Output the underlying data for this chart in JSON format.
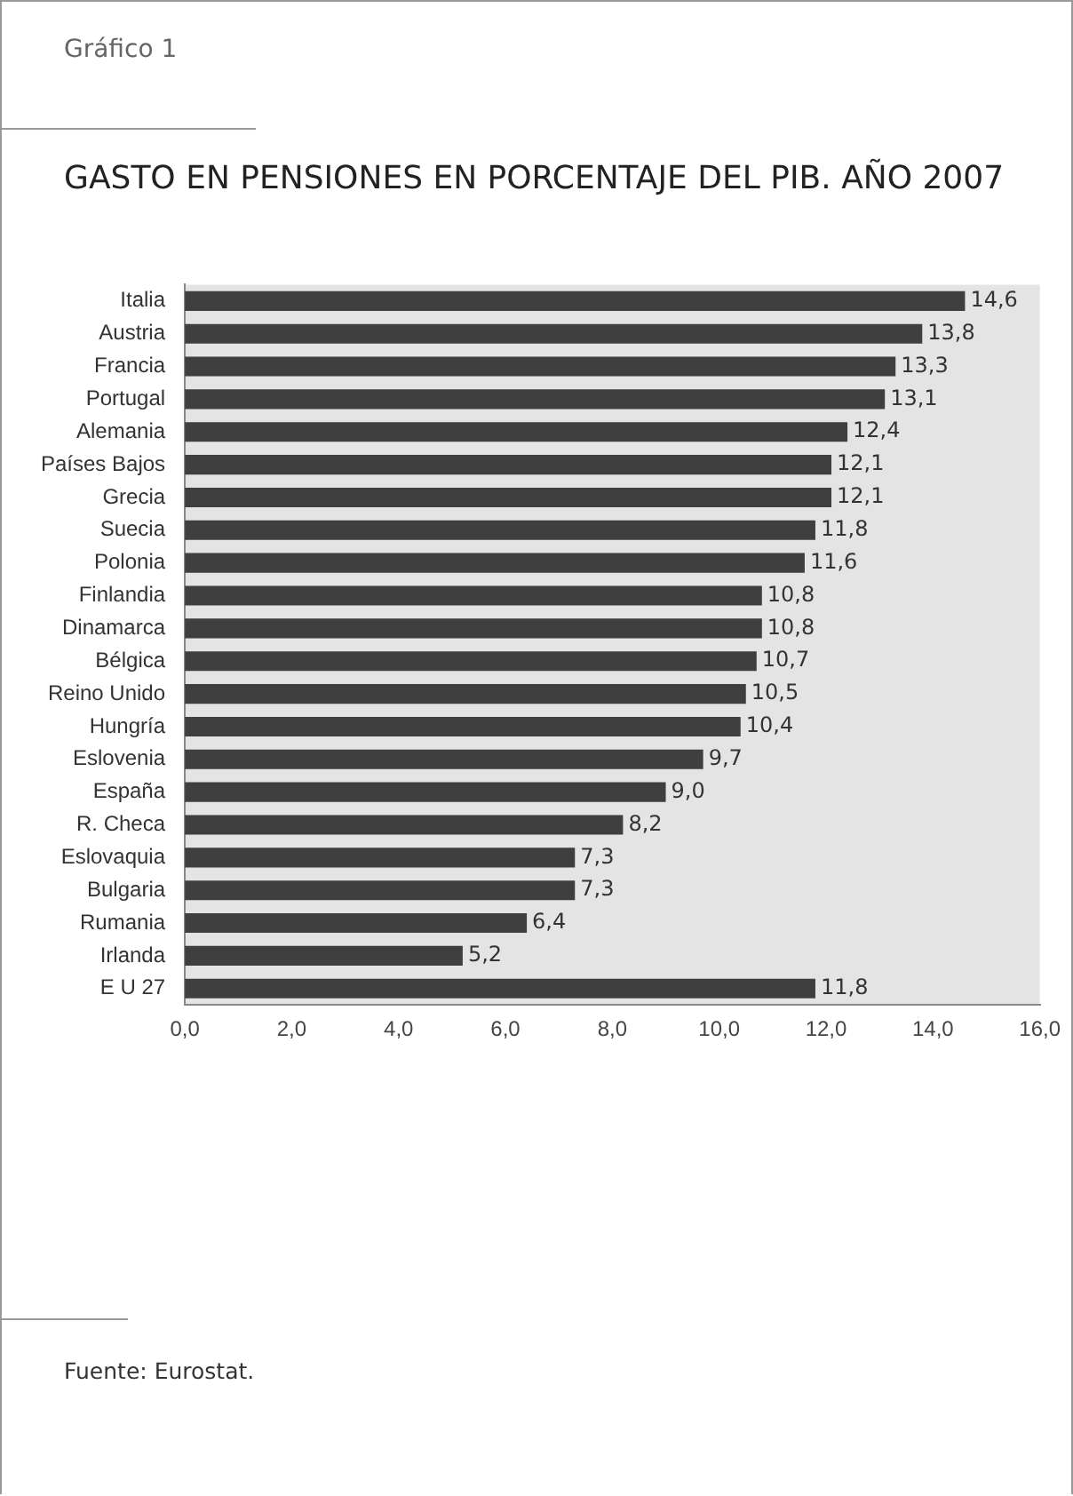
{
  "chart_data": {
    "type": "bar",
    "orientation": "horizontal",
    "title": "GASTO EN PENSIONES EN PORCENTAJE DEL PIB. AÑO 2007",
    "annotations": [
      "Gráfico 1",
      "Fuente: Eurostat."
    ],
    "categories": [
      "Italia",
      "Austria",
      "Francia",
      "Portugal",
      "Alemania",
      "Países Bajos",
      "Grecia",
      "Suecia",
      "Polonia",
      "Finlandia",
      "Dinamarca",
      "Bélgica",
      "Reino Unido",
      "Hungría",
      "Eslovenia",
      "España",
      "R. Checa",
      "Eslovaquia",
      "Bulgaria",
      "Rumania",
      "Irlanda",
      "E U 27"
    ],
    "values": [
      14.6,
      13.8,
      13.3,
      13.1,
      12.4,
      12.1,
      12.1,
      11.8,
      11.6,
      10.8,
      10.8,
      10.7,
      10.5,
      10.4,
      9.7,
      9.0,
      8.2,
      7.3,
      7.3,
      6.4,
      5.2,
      11.8
    ],
    "value_labels": [
      "14,6",
      "13,8",
      "13,3",
      "13,1",
      "12,4",
      "12,1",
      "12,1",
      "11,8",
      "11,6",
      "10,8",
      "10,8",
      "10,7",
      "10,5",
      "10,4",
      "9,7",
      "9,0",
      "8,2",
      "7,3",
      "7,3",
      "6,4",
      "5,2",
      "11,8"
    ],
    "color": "#3f3f3f",
    "xlim": [
      0,
      16
    ],
    "xticks": [
      {
        "value": 0,
        "label": "0,0"
      },
      {
        "value": 2,
        "label": "2,0"
      },
      {
        "value": 4,
        "label": "4,0"
      },
      {
        "value": 6,
        "label": "6,0"
      },
      {
        "value": 8,
        "label": "8,0"
      },
      {
        "value": 10,
        "label": "10,0"
      },
      {
        "value": 12,
        "label": "12,0"
      },
      {
        "value": 14,
        "label": "14,0"
      },
      {
        "value": 16,
        "label": "16,0"
      }
    ],
    "grid": false,
    "legend": false
  }
}
